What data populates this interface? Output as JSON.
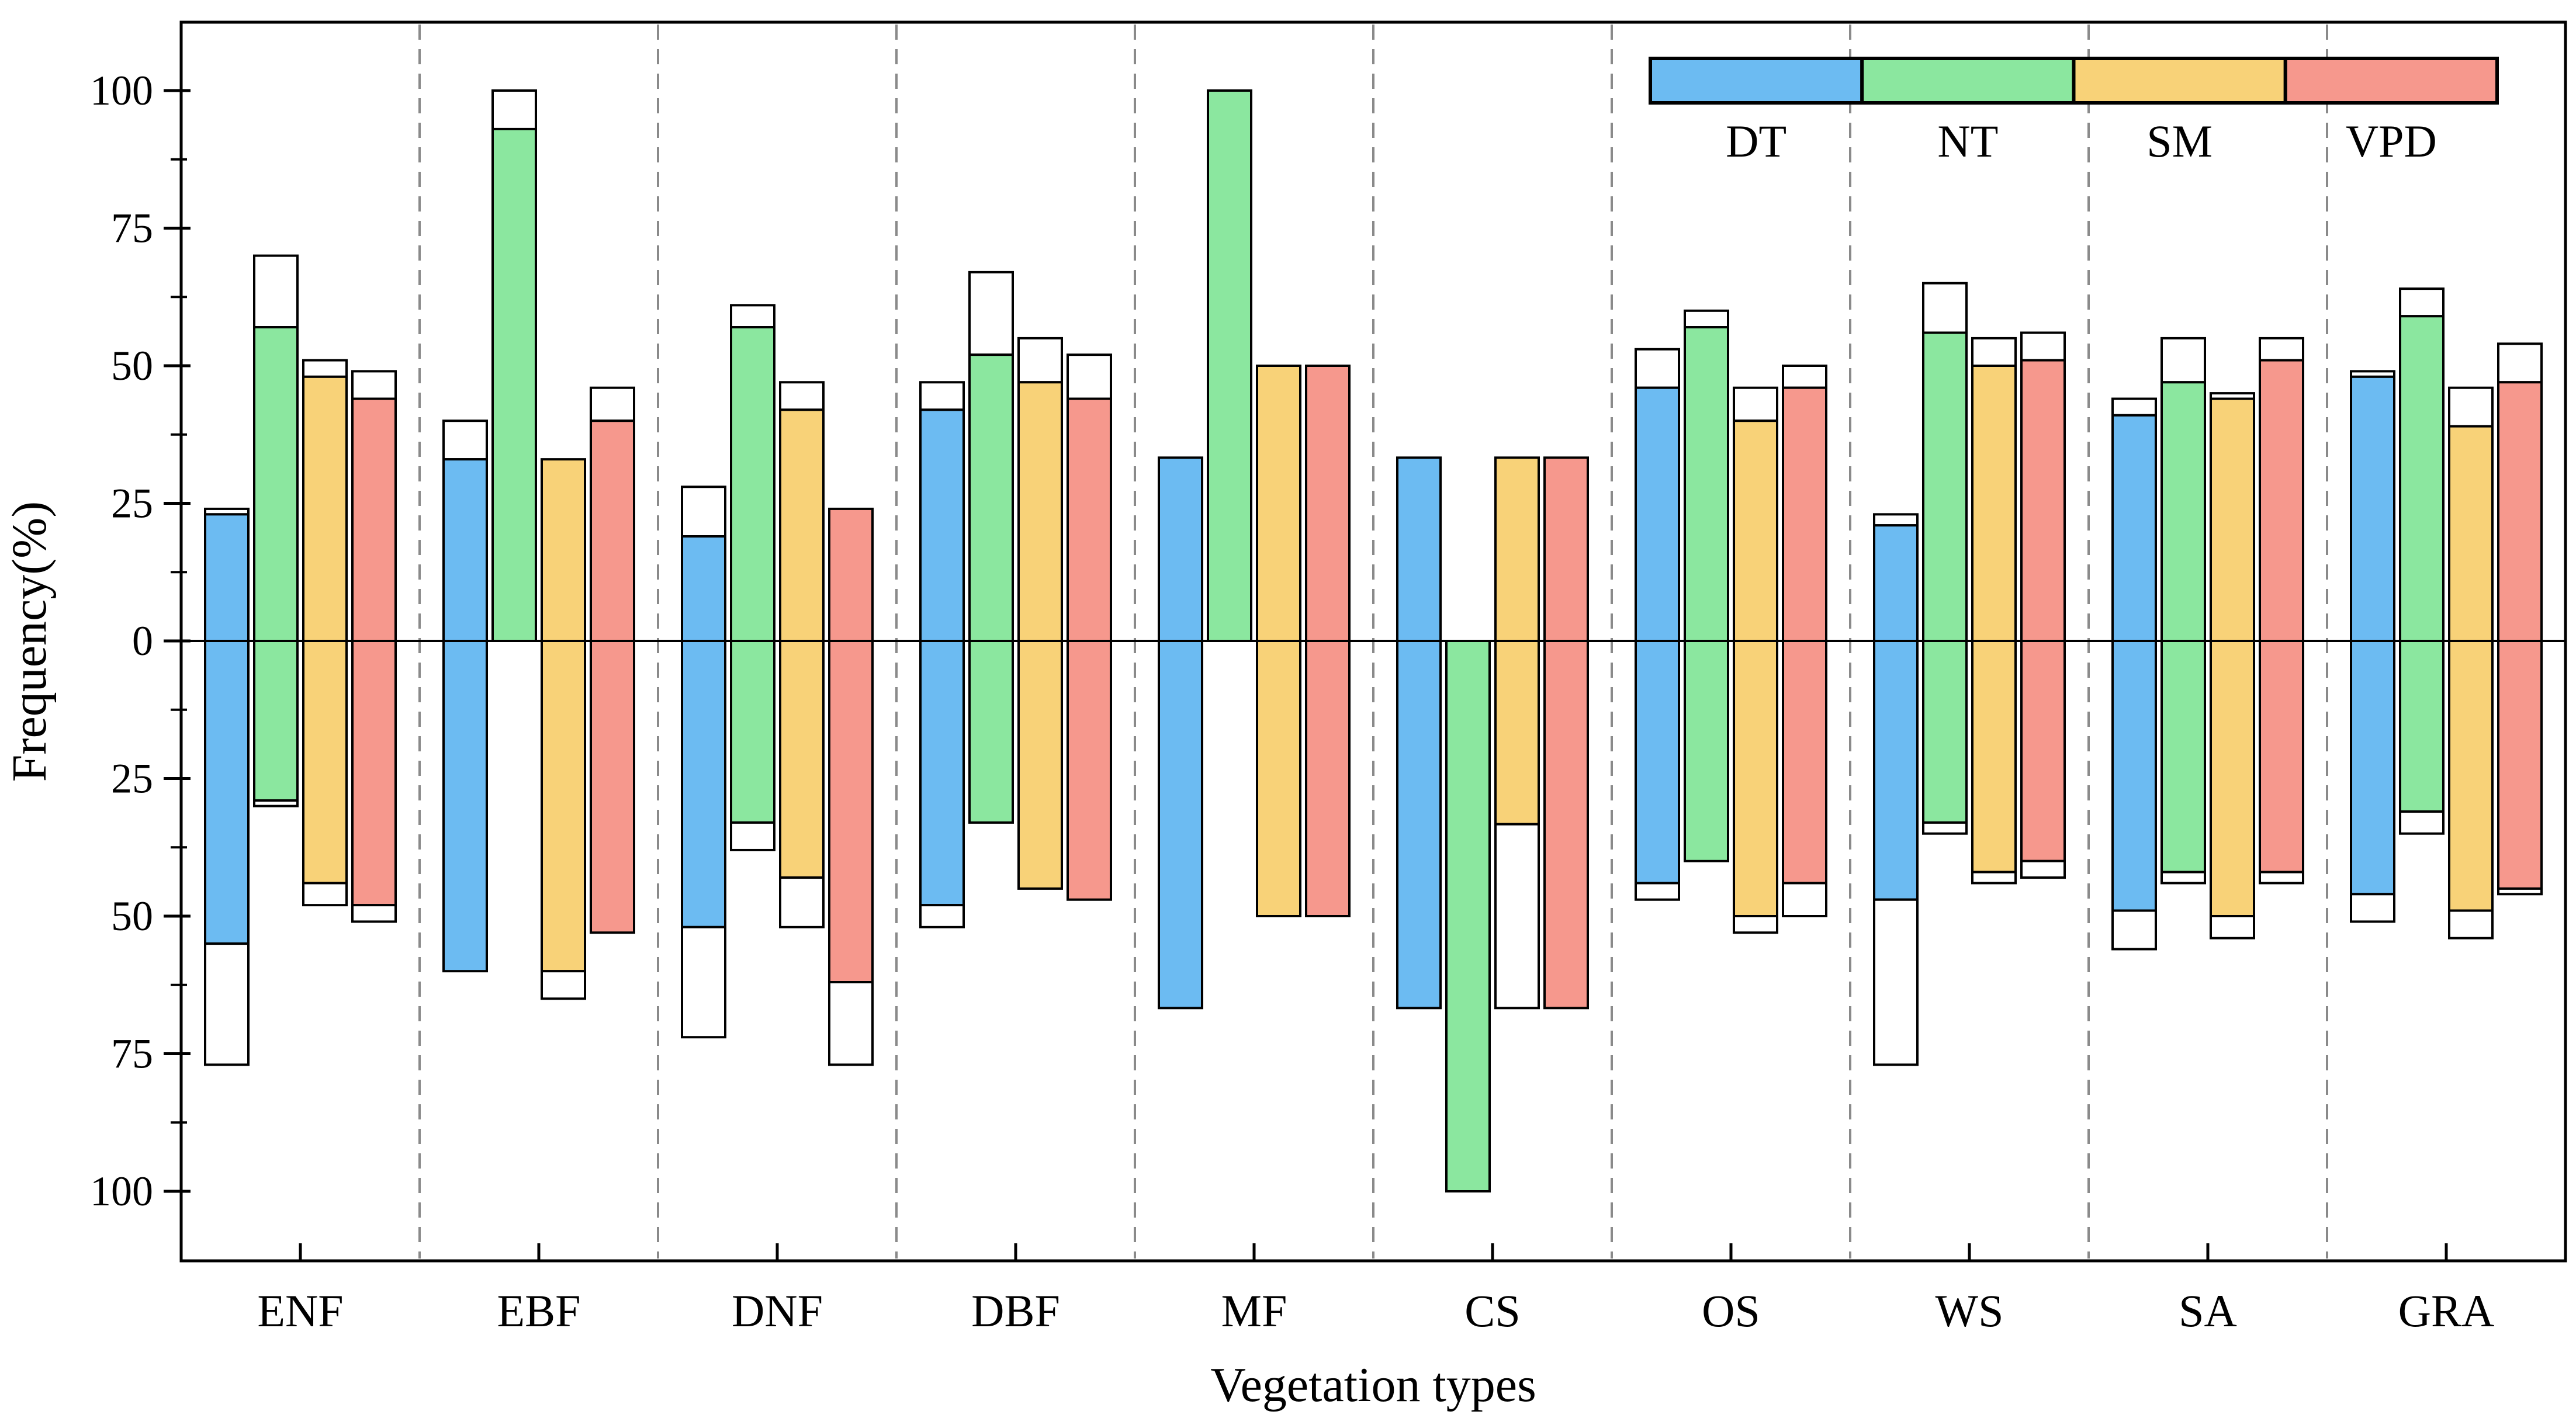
{
  "chart_data": {
    "type": "bar",
    "title": "",
    "xlabel": "Vegetation types",
    "ylabel": "Frequency(%)",
    "legend_position": "top-right",
    "grid": "dashed vertical separators between categories",
    "ylim": [
      -112.5,
      112.5
    ],
    "ytick_major_step": 25,
    "ytick_minor_step": 12.5,
    "ytick_labels": [
      "100",
      "75",
      "50",
      "25",
      "0",
      "25",
      "50",
      "75",
      "100"
    ],
    "categories": [
      "ENF",
      "EBF",
      "DNF",
      "DBF",
      "MF",
      "CS",
      "OS",
      "WS",
      "SA",
      "GRA"
    ],
    "series_labels": [
      "DT",
      "NT",
      "SM",
      "VPD"
    ],
    "series_colors": {
      "DT": "#6CBBF2",
      "NT": "#8BE79F",
      "SM": "#F8D278",
      "VPD": "#F6988D"
    },
    "bar_outline_color": "#000000",
    "cap_fill_color": "#ffffff",
    "separator_color": "#8a8a8a",
    "note": "Each bar: colored segment = value from 0, white capped segment extends to total. pos=[colored,total] above zero, neg=[colored,total] below zero (magnitudes in %).",
    "groups": [
      {
        "name": "ENF",
        "bars": [
          {
            "driver": "DT",
            "pos": [
              23,
              24
            ],
            "neg": [
              55,
              77
            ]
          },
          {
            "driver": "NT",
            "pos": [
              57,
              70
            ],
            "neg": [
              29,
              30
            ]
          },
          {
            "driver": "SM",
            "pos": [
              48,
              51
            ],
            "neg": [
              44,
              48
            ]
          },
          {
            "driver": "VPD",
            "pos": [
              44,
              49
            ],
            "neg": [
              48,
              51
            ]
          }
        ]
      },
      {
        "name": "EBF",
        "bars": [
          {
            "driver": "DT",
            "pos": [
              33,
              40
            ],
            "neg": [
              60,
              60
            ]
          },
          {
            "driver": "NT",
            "pos": [
              93,
              100
            ],
            "neg": [
              0,
              0
            ]
          },
          {
            "driver": "SM",
            "pos": [
              33,
              33
            ],
            "neg": [
              60,
              65
            ]
          },
          {
            "driver": "VPD",
            "pos": [
              40,
              46
            ],
            "neg": [
              53,
              53
            ]
          }
        ]
      },
      {
        "name": "DNF",
        "bars": [
          {
            "driver": "DT",
            "pos": [
              19,
              28
            ],
            "neg": [
              52,
              72
            ]
          },
          {
            "driver": "NT",
            "pos": [
              57,
              61
            ],
            "neg": [
              33,
              38
            ]
          },
          {
            "driver": "SM",
            "pos": [
              42,
              47
            ],
            "neg": [
              43,
              52
            ]
          },
          {
            "driver": "VPD",
            "pos": [
              24,
              24
            ],
            "neg": [
              62,
              77
            ]
          }
        ]
      },
      {
        "name": "DBF",
        "bars": [
          {
            "driver": "DT",
            "pos": [
              42,
              47
            ],
            "neg": [
              48,
              52
            ]
          },
          {
            "driver": "NT",
            "pos": [
              52,
              67
            ],
            "neg": [
              33,
              33
            ]
          },
          {
            "driver": "SM",
            "pos": [
              47,
              55
            ],
            "neg": [
              45,
              45
            ]
          },
          {
            "driver": "VPD",
            "pos": [
              44,
              52
            ],
            "neg": [
              47,
              47
            ]
          }
        ]
      },
      {
        "name": "MF",
        "bars": [
          {
            "driver": "DT",
            "pos": [
              33.3,
              33.3
            ],
            "neg": [
              66.7,
              66.7
            ]
          },
          {
            "driver": "NT",
            "pos": [
              100,
              100
            ],
            "neg": [
              0,
              0
            ]
          },
          {
            "driver": "SM",
            "pos": [
              50,
              50
            ],
            "neg": [
              50,
              50
            ]
          },
          {
            "driver": "VPD",
            "pos": [
              50,
              50
            ],
            "neg": [
              50,
              50
            ]
          }
        ]
      },
      {
        "name": "CS",
        "bars": [
          {
            "driver": "DT",
            "pos": [
              33.3,
              33.3
            ],
            "neg": [
              66.7,
              66.7
            ]
          },
          {
            "driver": "NT",
            "pos": [
              0,
              0
            ],
            "neg": [
              100,
              100
            ]
          },
          {
            "driver": "SM",
            "pos": [
              33.3,
              33.3
            ],
            "neg": [
              33.3,
              66.7
            ]
          },
          {
            "driver": "VPD",
            "pos": [
              33.3,
              33.3
            ],
            "neg": [
              66.7,
              66.7
            ]
          }
        ]
      },
      {
        "name": "OS",
        "bars": [
          {
            "driver": "DT",
            "pos": [
              46,
              53
            ],
            "neg": [
              44,
              47
            ]
          },
          {
            "driver": "NT",
            "pos": [
              57,
              60
            ],
            "neg": [
              40,
              40
            ]
          },
          {
            "driver": "SM",
            "pos": [
              40,
              46
            ],
            "neg": [
              50,
              53
            ]
          },
          {
            "driver": "VPD",
            "pos": [
              46,
              50
            ],
            "neg": [
              44,
              50
            ]
          }
        ]
      },
      {
        "name": "WS",
        "bars": [
          {
            "driver": "DT",
            "pos": [
              21,
              23
            ],
            "neg": [
              47,
              77
            ]
          },
          {
            "driver": "NT",
            "pos": [
              56,
              65
            ],
            "neg": [
              33,
              35
            ]
          },
          {
            "driver": "SM",
            "pos": [
              50,
              55
            ],
            "neg": [
              42,
              44
            ]
          },
          {
            "driver": "VPD",
            "pos": [
              51,
              56
            ],
            "neg": [
              40,
              43
            ]
          }
        ]
      },
      {
        "name": "SA",
        "bars": [
          {
            "driver": "DT",
            "pos": [
              41,
              44
            ],
            "neg": [
              49,
              56
            ]
          },
          {
            "driver": "NT",
            "pos": [
              47,
              55
            ],
            "neg": [
              42,
              44
            ]
          },
          {
            "driver": "SM",
            "pos": [
              44,
              45
            ],
            "neg": [
              50,
              54
            ]
          },
          {
            "driver": "VPD",
            "pos": [
              51,
              55
            ],
            "neg": [
              42,
              44
            ]
          }
        ]
      },
      {
        "name": "GRA",
        "bars": [
          {
            "driver": "DT",
            "pos": [
              48,
              49
            ],
            "neg": [
              46,
              51
            ]
          },
          {
            "driver": "NT",
            "pos": [
              59,
              64
            ],
            "neg": [
              31,
              35
            ]
          },
          {
            "driver": "SM",
            "pos": [
              39,
              46
            ],
            "neg": [
              49,
              54
            ]
          },
          {
            "driver": "VPD",
            "pos": [
              47,
              54
            ],
            "neg": [
              45,
              46
            ]
          }
        ]
      }
    ]
  }
}
